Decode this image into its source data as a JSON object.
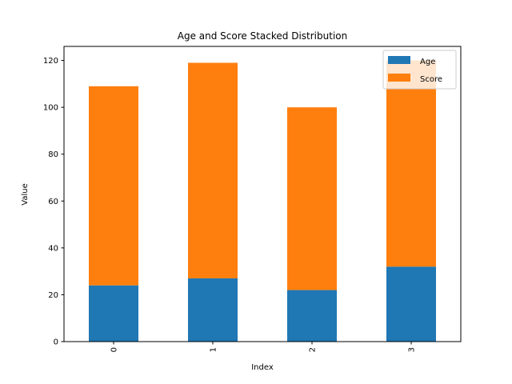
{
  "chart_data": {
    "type": "bar",
    "stacked": true,
    "title": "Age and Score Stacked Distribution",
    "xlabel": "Index",
    "ylabel": "Value",
    "categories": [
      "0",
      "1",
      "2",
      "3"
    ],
    "series": [
      {
        "name": "Age",
        "values": [
          24,
          27,
          22,
          32
        ],
        "color": "#1f77b4"
      },
      {
        "name": "Score",
        "values": [
          85,
          92,
          78,
          88
        ],
        "color": "#ff7f0e"
      }
    ],
    "ylim": [
      0,
      126
    ],
    "yticks": [
      0,
      20,
      40,
      60,
      80,
      100,
      120
    ],
    "legend_position": "top-right",
    "grid": false
  }
}
